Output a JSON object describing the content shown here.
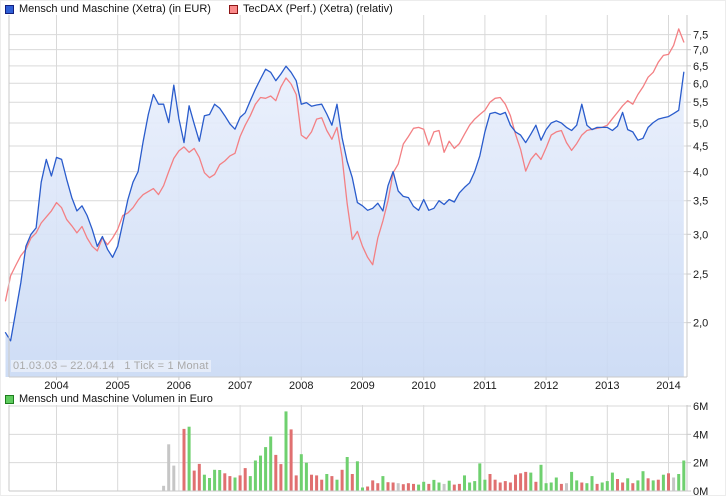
{
  "legend": {
    "series1_label": "Mensch und Maschine (Xetra) (in EUR)",
    "series2_label": "TecDAX (Perf.) (Xetra) (relativ)",
    "volume_label": "Mensch und Maschine Volumen in Euro"
  },
  "watermark": "01.03.03 – 22.04.14   1 Tick = 1 Monat",
  "colors": {
    "blue_line": "#2a5ccc",
    "red_line": "#f38084",
    "area_top": "#e9effc",
    "area_bottom": "#c9d9f4",
    "grid": "#d9d9d9",
    "border": "#c9c9c9",
    "axis_text": "#1a1a1a",
    "vol_up": "#6fd06f",
    "vol_down": "#e07070",
    "vol_neutral": "#c6c6c6",
    "legend_blue_fill": "#2f5fd6",
    "legend_blue_border": "#131f7d",
    "legend_red_fill": "#fb8a8a",
    "legend_red_border": "#8c1515",
    "legend_green_fill": "#5ecc5e",
    "legend_green_border": "#1e7d1e"
  },
  "chart_data": {
    "type": "line",
    "title": "Mensch und Maschine vs TecDAX (relativ), monthly",
    "x_start": "2003-03",
    "x_end": "2014-04",
    "x_step": "1 month",
    "points_per_series": 134,
    "x_tick_labels": [
      "2004",
      "2005",
      "2006",
      "2007",
      "2008",
      "2009",
      "2010",
      "2011",
      "2012",
      "2013",
      "2014"
    ],
    "y_axis": {
      "scale": "log",
      "tick_values": [
        2.0,
        2.5,
        3.0,
        3.5,
        4.0,
        4.5,
        5.0,
        5.5,
        6.0,
        6.5,
        7.0,
        7.5
      ],
      "tick_labels": [
        "2,0",
        "2,5",
        "3,0",
        "3,5",
        "4,0",
        "4,5",
        "5,0",
        "5,5",
        "6,0",
        "6,5",
        "7,0",
        "7,5"
      ],
      "range_shown": [
        1.56,
        8.2
      ]
    },
    "legend_position": "top",
    "grid": true,
    "series": [
      {
        "name": "Mensch und Maschine (Xetra) (in EUR)",
        "color": "#2a5ccc",
        "area_fill": true,
        "values": [
          1.91,
          1.84,
          2.1,
          2.4,
          2.84,
          3.0,
          3.09,
          3.81,
          4.23,
          3.92,
          4.27,
          4.23,
          3.86,
          3.55,
          3.34,
          3.42,
          3.27,
          3.07,
          2.84,
          2.97,
          2.8,
          2.7,
          2.84,
          3.16,
          3.52,
          3.81,
          4.0,
          4.6,
          5.2,
          5.7,
          5.45,
          5.45,
          5.01,
          5.95,
          5.1,
          4.57,
          5.41,
          4.98,
          4.6,
          5.17,
          5.2,
          5.45,
          5.35,
          5.17,
          4.98,
          4.86,
          5.13,
          5.24,
          5.54,
          5.84,
          6.12,
          6.4,
          6.31,
          6.07,
          6.26,
          6.49,
          6.31,
          6.07,
          5.45,
          5.49,
          5.4,
          5.43,
          5.45,
          5.21,
          4.95,
          5.45,
          4.67,
          4.19,
          3.89,
          3.47,
          3.42,
          3.35,
          3.38,
          3.46,
          3.34,
          3.75,
          4.0,
          3.66,
          3.57,
          3.55,
          3.41,
          3.35,
          3.52,
          3.35,
          3.38,
          3.5,
          3.44,
          3.52,
          3.48,
          3.63,
          3.72,
          3.8,
          4.0,
          4.3,
          4.8,
          5.22,
          5.25,
          5.2,
          5.25,
          4.95,
          4.8,
          4.73,
          4.57,
          4.75,
          4.95,
          4.62,
          4.85,
          5.0,
          5.05,
          5.0,
          4.9,
          4.83,
          4.95,
          5.45,
          4.95,
          4.85,
          4.9,
          4.9,
          4.9,
          4.83,
          4.93,
          5.25,
          4.85,
          4.8,
          4.62,
          4.66,
          4.9,
          5.01,
          5.09,
          5.12,
          5.15,
          5.22,
          5.3,
          6.31
        ]
      },
      {
        "name": "TecDAX (Perf.) (Xetra) (relativ)",
        "color": "#f38084",
        "area_fill": false,
        "values": [
          2.21,
          2.48,
          2.6,
          2.72,
          2.8,
          2.95,
          3.02,
          3.16,
          3.25,
          3.34,
          3.47,
          3.39,
          3.21,
          3.12,
          3.02,
          3.11,
          2.95,
          2.84,
          2.78,
          2.95,
          2.86,
          2.95,
          3.07,
          3.27,
          3.31,
          3.39,
          3.51,
          3.6,
          3.65,
          3.7,
          3.6,
          3.75,
          4.0,
          4.25,
          4.4,
          4.48,
          4.37,
          4.45,
          4.27,
          3.98,
          3.89,
          3.95,
          4.13,
          4.2,
          4.3,
          4.35,
          4.7,
          4.95,
          5.17,
          5.45,
          5.62,
          5.6,
          5.66,
          5.54,
          5.9,
          6.15,
          5.98,
          5.7,
          4.73,
          4.65,
          4.8,
          5.09,
          5.12,
          4.83,
          4.64,
          4.9,
          4.27,
          3.45,
          2.93,
          3.04,
          2.84,
          2.7,
          2.61,
          2.95,
          3.19,
          3.5,
          3.98,
          4.14,
          4.54,
          4.7,
          4.88,
          4.9,
          4.86,
          4.52,
          4.8,
          4.83,
          4.37,
          4.6,
          4.45,
          4.55,
          4.75,
          4.95,
          5.09,
          5.2,
          5.3,
          5.5,
          5.6,
          5.62,
          5.45,
          5.17,
          4.75,
          4.43,
          4.01,
          4.23,
          4.35,
          4.23,
          4.46,
          4.73,
          4.8,
          4.83,
          4.57,
          4.41,
          4.55,
          4.73,
          4.83,
          4.86,
          4.88,
          4.9,
          4.95,
          5.1,
          5.25,
          5.41,
          5.54,
          5.45,
          5.7,
          5.9,
          6.17,
          6.31,
          6.61,
          6.82,
          6.85,
          7.14,
          7.7,
          7.25
        ]
      }
    ],
    "volume": {
      "name": "Mensch und Maschine Volumen in Euro",
      "unit": "EUR millions",
      "y_tick_values": [
        0,
        2,
        4,
        6
      ],
      "y_tick_labels": [
        "0M",
        "2M",
        "4M",
        "6M"
      ],
      "values": [
        0,
        0,
        0,
        0,
        0,
        0,
        0,
        0,
        0,
        0,
        0,
        0,
        0,
        0,
        0,
        0,
        0,
        0,
        0,
        0,
        0,
        0,
        0,
        0,
        0,
        0,
        0,
        0,
        0,
        0,
        0,
        0.37,
        3.3,
        1.79,
        0,
        4.38,
        4.54,
        1.44,
        1.91,
        1.15,
        0.92,
        1.5,
        1.48,
        1.25,
        1.05,
        0.95,
        1.1,
        1.62,
        1.05,
        2.15,
        2.5,
        3.1,
        3.85,
        2.55,
        1.9,
        5.62,
        4.35,
        1.1,
        2.6,
        2.0,
        1.15,
        1.1,
        0.8,
        1.2,
        1.05,
        0.8,
        1.5,
        2.4,
        1.2,
        2.1,
        0.25,
        0.32,
        0.75,
        0.55,
        1.05,
        0.62,
        0.6,
        0.55,
        0.48,
        0.55,
        0.5,
        0.45,
        0.65,
        0.5,
        0.78,
        0.6,
        0.5,
        0.73,
        0.45,
        0.5,
        1.1,
        0.6,
        0.7,
        1.95,
        0.8,
        1.2,
        0.8,
        0.6,
        0.7,
        0.6,
        1.15,
        1.25,
        1.35,
        1.3,
        0.65,
        1.85,
        0.55,
        0.6,
        0.95,
        0.5,
        0.55,
        1.35,
        0.75,
        0.6,
        0.55,
        1.05,
        0.5,
        0.6,
        0.7,
        1.3,
        0.85,
        0.6,
        0.9,
        0.55,
        0.75,
        1.4,
        0.9,
        0.75,
        0.8,
        1.15,
        1.25,
        0.95,
        1.2,
        2.15
      ],
      "directions": [
        "",
        "",
        "",
        "",
        "",
        "",
        "",
        "",
        "",
        "",
        "",
        "",
        "",
        "",
        "",
        "",
        "",
        "",
        "",
        "",
        "",
        "",
        "",
        "",
        "",
        "",
        "",
        "",
        "",
        "",
        "",
        "n",
        "n",
        "n",
        "",
        "r",
        "g",
        "r",
        "r",
        "g",
        "g",
        "g",
        "g",
        "r",
        "r",
        "g",
        "r",
        "r",
        "g",
        "g",
        "g",
        "g",
        "g",
        "r",
        "r",
        "g",
        "r",
        "r",
        "g",
        "g",
        "r",
        "r",
        "r",
        "g",
        "r",
        "g",
        "r",
        "g",
        "r",
        "g",
        "g",
        "r",
        "r",
        "r",
        "g",
        "r",
        "r",
        "n",
        "r",
        "r",
        "r",
        "g",
        "g",
        "r",
        "g",
        "g",
        "n",
        "g",
        "r",
        "r",
        "g",
        "g",
        "g",
        "g",
        "g",
        "r",
        "r",
        "r",
        "r",
        "r",
        "r",
        "r",
        "r",
        "g",
        "r",
        "g",
        "g",
        "g",
        "g",
        "r",
        "n",
        "g",
        "g",
        "r",
        "g",
        "g",
        "r",
        "g",
        "g",
        "g",
        "r",
        "r",
        "g",
        "r",
        "g",
        "g",
        "r",
        "g",
        "r",
        "g",
        "r",
        "n",
        "g",
        "g"
      ]
    }
  }
}
